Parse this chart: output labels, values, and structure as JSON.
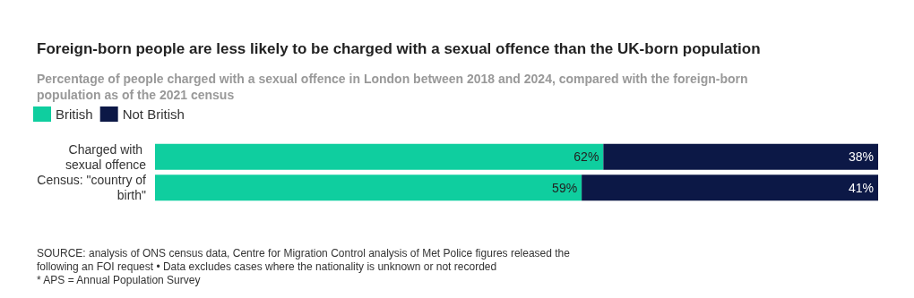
{
  "chart_data": {
    "type": "bar",
    "orientation": "horizontal",
    "stacked": true,
    "title": "Foreign-born people are less likely to be charged with a sexual offence than the UK-born population",
    "subtitle": "Percentage of people charged with a sexual offence in London between 2018 and 2024, compared with the foreign-born population as of the 2021 census",
    "categories": [
      "Charged with sexual offence",
      "Census: \"country of birth\""
    ],
    "series": [
      {
        "name": "British",
        "color": "#0fce9f",
        "values": [
          62,
          59
        ],
        "value_labels": [
          "62%",
          "59%"
        ]
      },
      {
        "name": "Not British",
        "color": "#0c1846",
        "values": [
          38,
          41
        ],
        "value_labels": [
          "38%",
          "41%"
        ]
      }
    ],
    "legend": "top left",
    "grid": false,
    "annotations": [
      "SOURCE: analysis of ONS census data, Centre for Migration Control analysis of Met Police figures released the following an FOI request • Data excludes cases where the nationality is unknown or not recorded",
      "* APS = Annual Population Survey"
    ]
  }
}
